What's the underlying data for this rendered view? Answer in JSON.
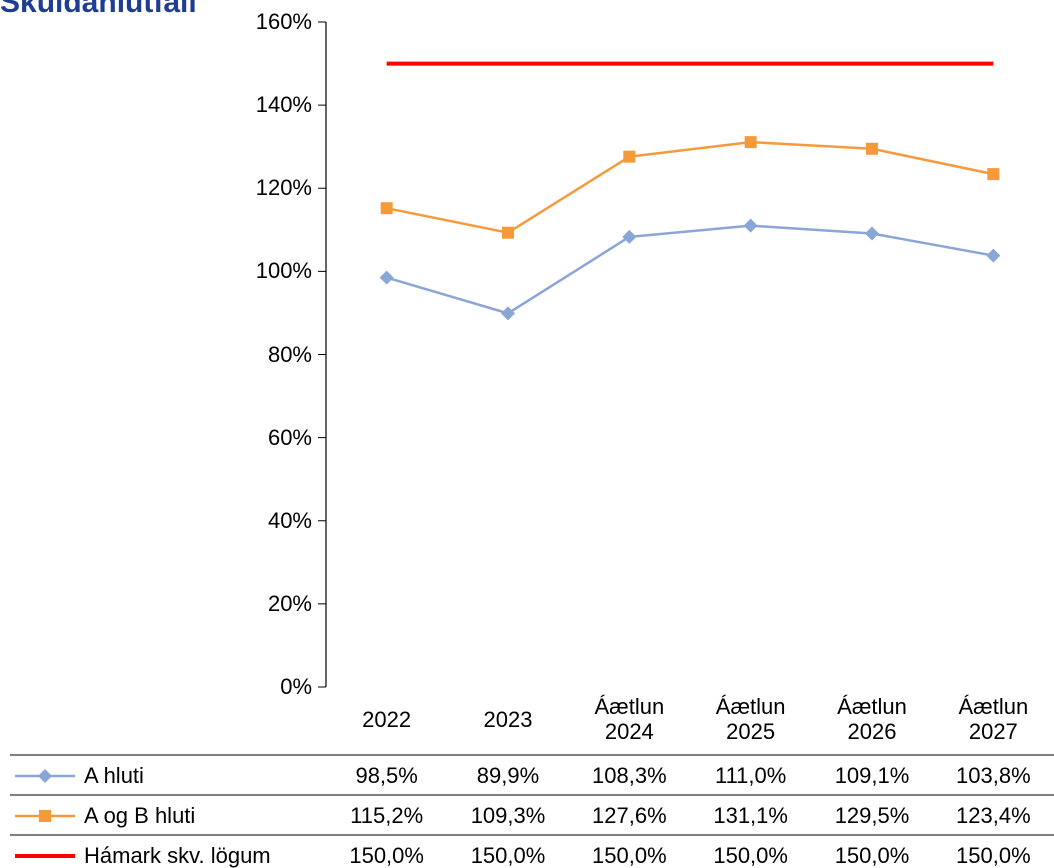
{
  "chart_data": {
    "type": "line",
    "title": "Skuldahlutfall",
    "categories": [
      "2022",
      "2023",
      "Áætlun 2024",
      "Áætlun 2025",
      "Áætlun 2026",
      "Áætlun 2027"
    ],
    "series": [
      {
        "name": "A hluti",
        "color": "#8aa6d6",
        "marker": "diamond",
        "values": [
          98.5,
          89.9,
          108.3,
          111.0,
          109.1,
          103.8
        ],
        "value_labels": [
          "98,5%",
          "89,9%",
          "108,3%",
          "111,0%",
          "109,1%",
          "103,8%"
        ]
      },
      {
        "name": "A og B hluti",
        "color": "#f59a3a",
        "marker": "square",
        "values": [
          115.2,
          109.3,
          127.6,
          131.1,
          129.5,
          123.4
        ],
        "value_labels": [
          "115,2%",
          "109,3%",
          "127,6%",
          "131,1%",
          "129,5%",
          "123,4%"
        ]
      },
      {
        "name": "Hámark skv. lögum",
        "color": "#ff0000",
        "marker": "none",
        "values": [
          150.0,
          150.0,
          150.0,
          150.0,
          150.0,
          150.0
        ],
        "value_labels": [
          "150,0%",
          "150,0%",
          "150,0%",
          "150,0%",
          "150,0%",
          "150,0%"
        ]
      }
    ],
    "ylim": [
      0,
      160
    ],
    "yticks": [
      {
        "value": 0,
        "label": "0%"
      },
      {
        "value": 20,
        "label": "20%"
      },
      {
        "value": 40,
        "label": "40%"
      },
      {
        "value": 60,
        "label": "60%"
      },
      {
        "value": 80,
        "label": "80%"
      },
      {
        "value": 100,
        "label": "100%"
      },
      {
        "value": 120,
        "label": "120%"
      },
      {
        "value": 140,
        "label": "140%"
      },
      {
        "value": 160,
        "label": "160%"
      }
    ],
    "grid": false,
    "data_table": true
  }
}
